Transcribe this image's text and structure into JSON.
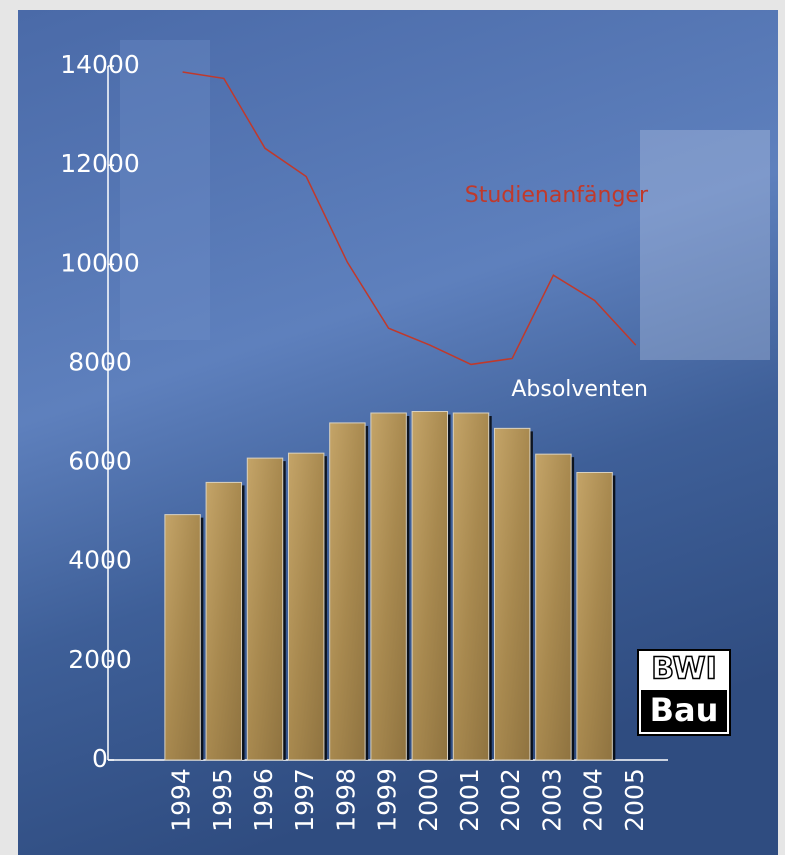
{
  "chart_data": {
    "type": "bar",
    "categories": [
      "1994",
      "1995",
      "1996",
      "1997",
      "1998",
      "1999",
      "2000",
      "2001",
      "2002",
      "2003",
      "2004",
      "2005"
    ],
    "series": [
      {
        "name": "Absolventen",
        "type": "bar",
        "color": "#b8975a",
        "values": [
          4950,
          5600,
          6090,
          6190,
          6800,
          7000,
          7030,
          7000,
          6690,
          6170,
          5800,
          null
        ]
      },
      {
        "name": "Studienanfänger",
        "type": "line",
        "color": "#c0392b",
        "values": [
          13880,
          13750,
          12340,
          11770,
          10040,
          8710,
          8370,
          7980,
          8100,
          9780,
          9270,
          8370
        ]
      }
    ],
    "ylim": [
      0,
      14000
    ],
    "yticks": [
      0,
      2000,
      4000,
      6000,
      8000,
      10000,
      12000,
      14000
    ]
  },
  "logo": {
    "line1": "BWI",
    "line2": "Bau"
  }
}
